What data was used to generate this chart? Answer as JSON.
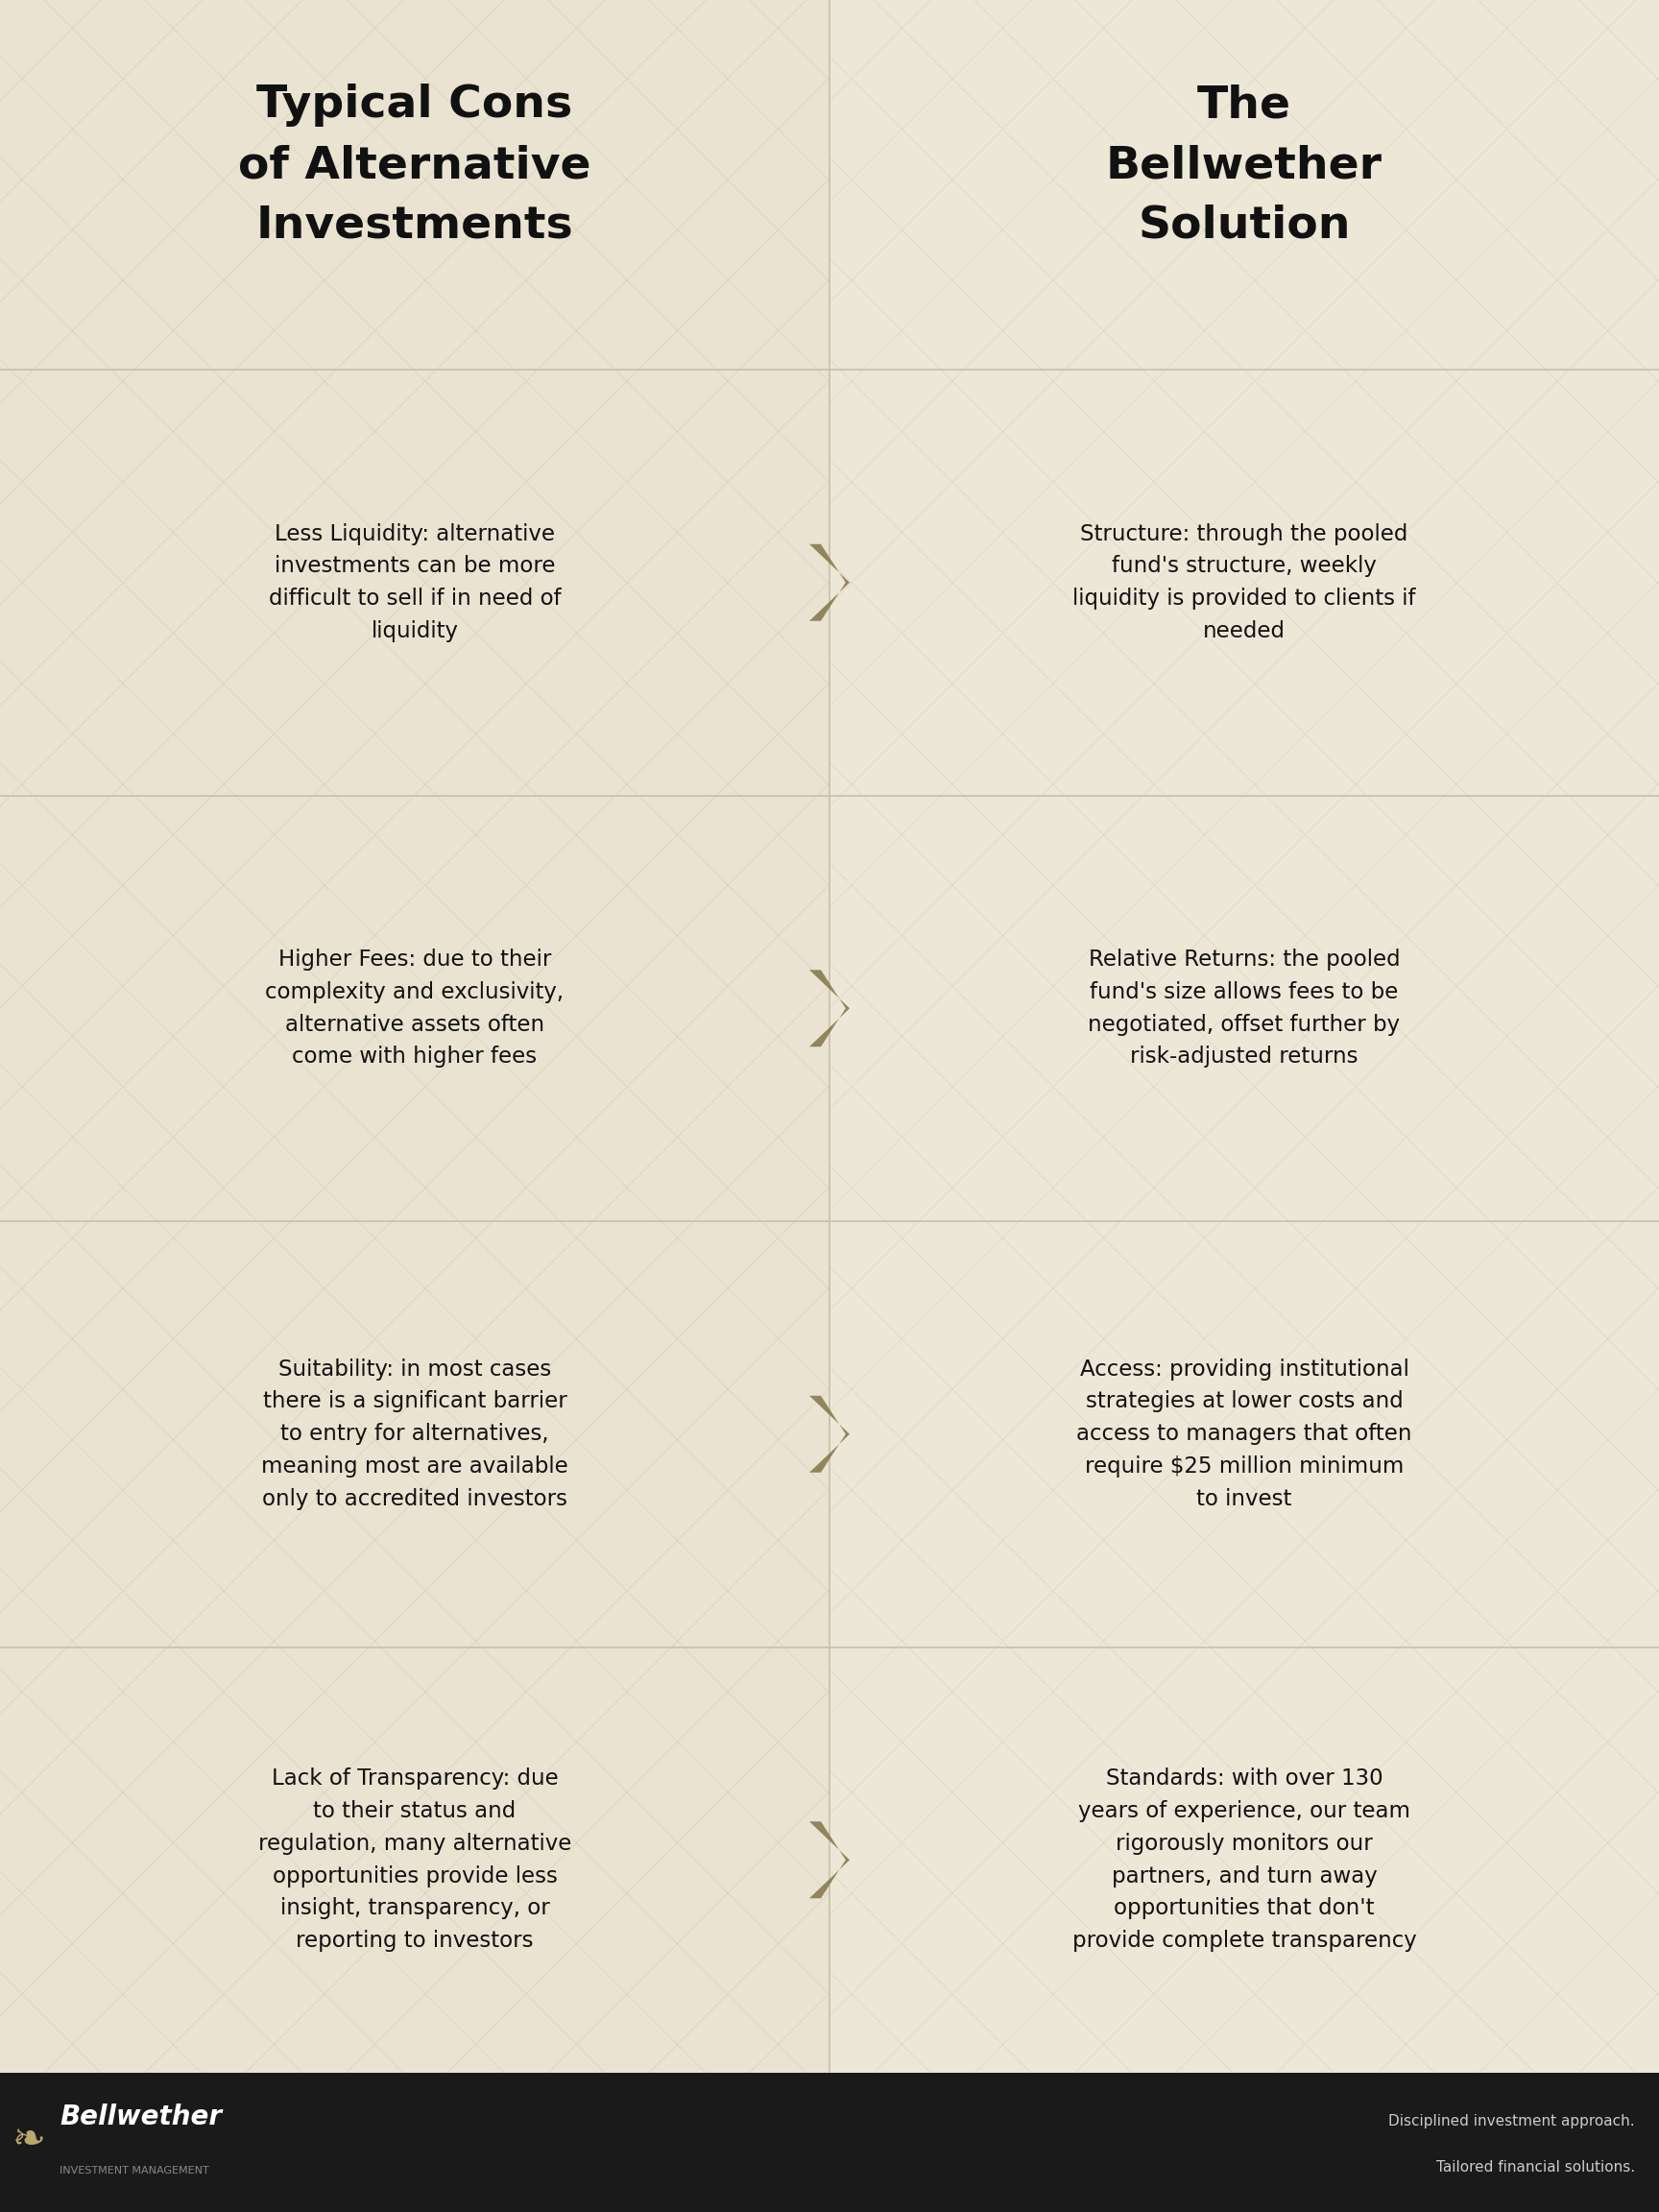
{
  "bg_left": "#EAE3D2",
  "bg_right": "#EDE7D8",
  "divider_color": "#C8C0A8",
  "arrow_color": "#8B7D52",
  "text_color": "#111111",
  "footer_bg": "#1A1A1A",
  "footer_text": "#FFFFFF",
  "footer_sub": "#999999",
  "col1_title": "Typical Cons\nof Alternative\nInvestments",
  "col2_title": "The\nBellwether\nSolution",
  "rows": [
    {
      "left_bold": "Less Liquidity:",
      "left_rest": " alternative\ninvestments can be more\ndifficult to sell if in need of\nliquidity",
      "right_bold": "Structure:",
      "right_rest": " through the pooled\nfund's structure, weekly\nliquidity is provided to clients if\nneeded"
    },
    {
      "left_bold": "Higher Fees:",
      "left_rest": " due to their\ncomplexity and exclusivity,\nalternative assets often\ncome with higher fees",
      "right_bold": "Relative Returns:",
      "right_rest": " the pooled\nfund's size allows fees to be\nnegotiated, offset further by\nrisk-adjusted returns"
    },
    {
      "left_bold": "Suitability:",
      "left_rest": " in most cases\nthere is a significant barrier\nto entry for alternatives,\nmeaning most are available\nonly to accredited investors",
      "right_bold": "Access:",
      "right_rest": " providing institutional\nstrategies at lower costs and\naccess to managers that often\nrequire $25 million minimum\nto invest"
    },
    {
      "left_bold": "Lack of Transparency:",
      "left_rest": " due\nto their status and\nregulation, many alternative\nopportunities provide less\ninsight, transparency, or\nreporting to investors",
      "right_bold": "Standards:",
      "right_rest": " with over 130\nyears of experience, our team\nrigorously monitors our\npartners, and turn away\nopportunities that don't\nprovide complete transparency"
    }
  ],
  "footer_brand": "Bellwether",
  "footer_brand_sub": "INVESTMENT MANAGEMENT",
  "footer_tagline1": "Disciplined investment approach.",
  "footer_tagline2": "Tailored financial solutions."
}
